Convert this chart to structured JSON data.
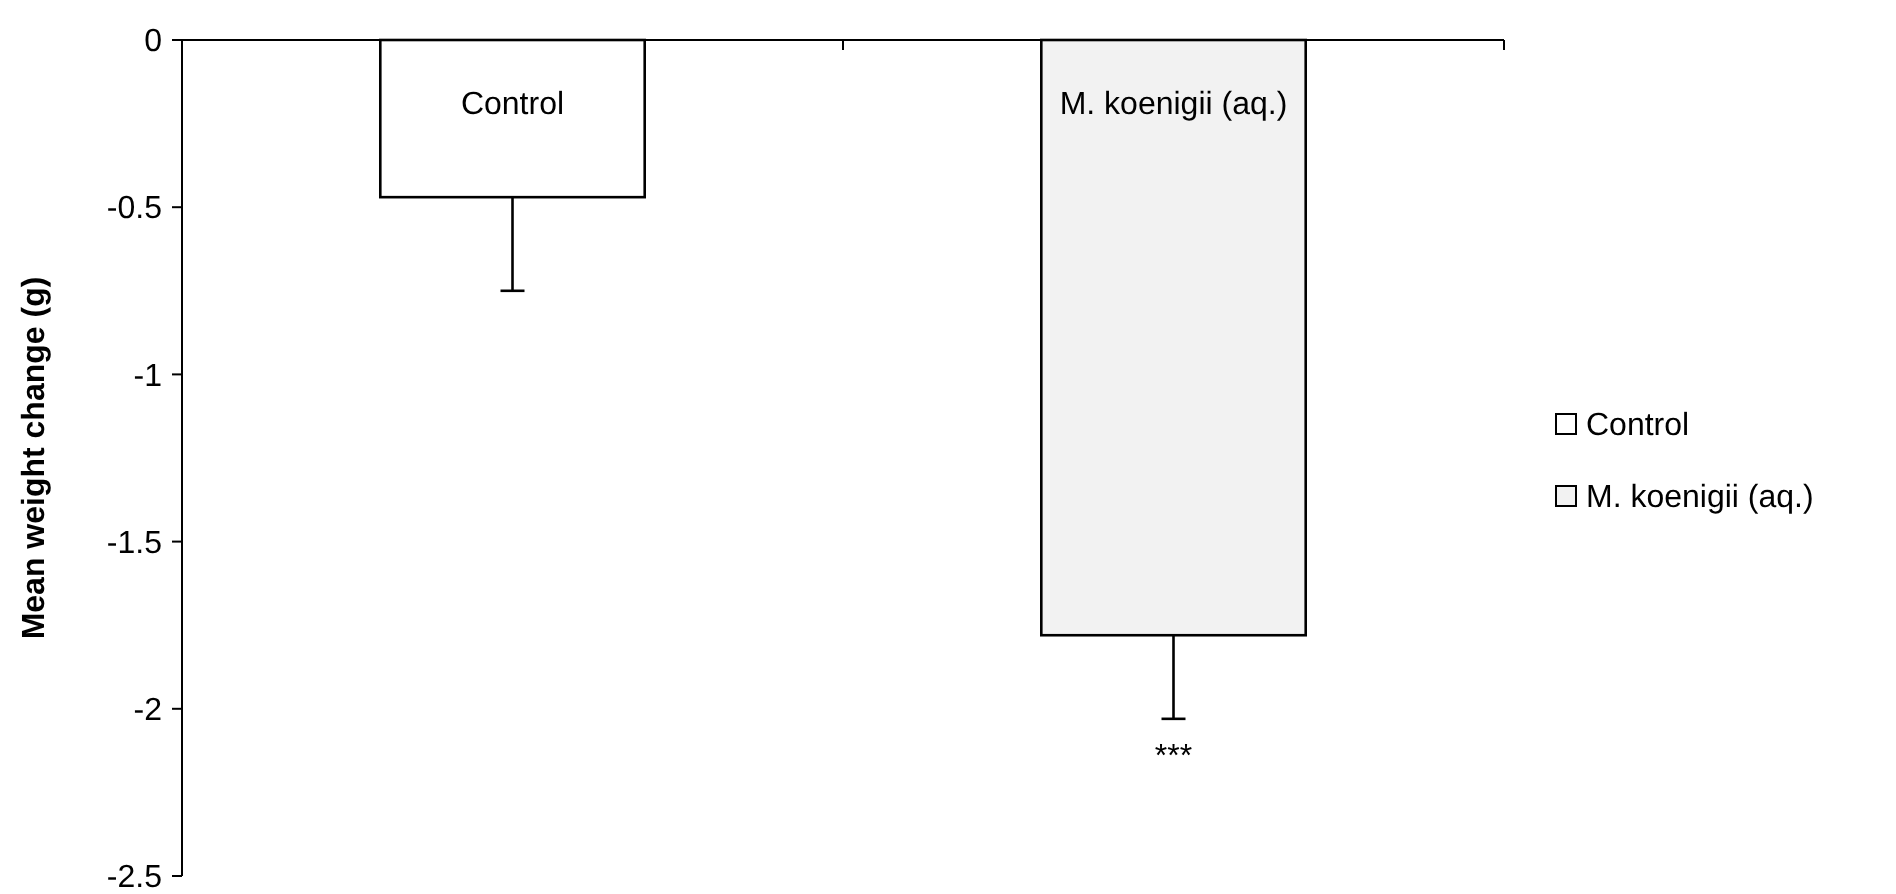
{
  "chart_data": {
    "type": "bar",
    "ylabel": "Mean weight change (g)",
    "categories": [
      "Control",
      "M. koenigii (aq.)"
    ],
    "series": [
      {
        "name": "Control",
        "color": "#ffffff",
        "values": [
          -0.47,
          null
        ],
        "errors": [
          0.28,
          null
        ]
      },
      {
        "name": "M. koenigii (aq.)",
        "color": "#f2f2f2",
        "values": [
          null,
          -1.78
        ],
        "errors": [
          null,
          0.25
        ]
      }
    ],
    "ylim": [
      -2.5,
      0
    ],
    "yticks": [
      0,
      -0.5,
      -1,
      -1.5,
      -2,
      -2.5
    ],
    "annotations": [
      "***"
    ],
    "legend": "right"
  }
}
